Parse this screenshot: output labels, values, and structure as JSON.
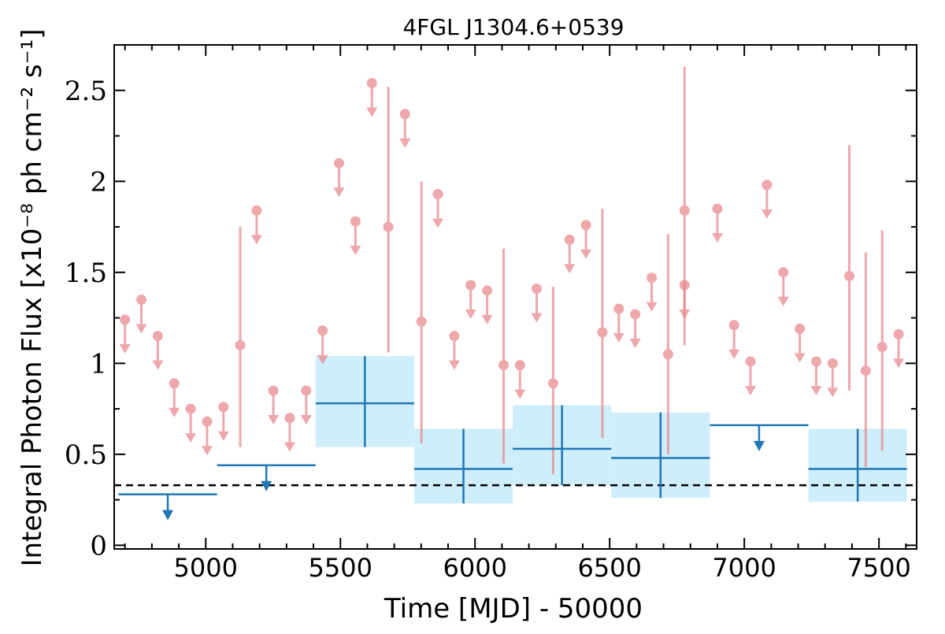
{
  "chart_data": {
    "type": "scatter",
    "title": "4FGL J1304.6+0539",
    "xlabel": "Time [MJD] - 50000",
    "ylabel": "Integral Photon Flux [x10⁻⁸ ph cm⁻² s⁻¹]",
    "xlim": [
      4660,
      7640
    ],
    "ylim": [
      -0.02,
      2.75
    ],
    "x_ticks": [
      5000,
      5500,
      6000,
      6500,
      7000,
      7500
    ],
    "y_ticks": [
      0,
      0.5,
      1,
      1.5,
      2,
      2.5
    ],
    "y_tick_labels": [
      "0",
      "0.5",
      "1",
      "1.5",
      "2",
      "2.5"
    ],
    "grid": false,
    "reference_line": {
      "y": 0.33,
      "style": "dashed",
      "color": "#000000"
    },
    "series": [
      {
        "kind": "monthly_upper_limits",
        "color": "#e8868a",
        "points": [
          {
            "x": 4700,
            "y": 1.24
          },
          {
            "x": 4761,
            "y": 1.35
          },
          {
            "x": 4822,
            "y": 1.15
          },
          {
            "x": 4883,
            "y": 0.89
          },
          {
            "x": 4944,
            "y": 0.75
          },
          {
            "x": 5005,
            "y": 0.68
          },
          {
            "x": 5066,
            "y": 0.76
          },
          {
            "x": 5189,
            "y": 1.84
          },
          {
            "x": 5251,
            "y": 0.85
          },
          {
            "x": 5312,
            "y": 0.7
          },
          {
            "x": 5373,
            "y": 0.85
          },
          {
            "x": 5434,
            "y": 1.18
          },
          {
            "x": 5495,
            "y": 2.1
          },
          {
            "x": 5556,
            "y": 1.78
          },
          {
            "x": 5617,
            "y": 2.54
          },
          {
            "x": 5740,
            "y": 2.37
          },
          {
            "x": 5862,
            "y": 1.93
          },
          {
            "x": 5923,
            "y": 1.15
          },
          {
            "x": 5984,
            "y": 1.43
          },
          {
            "x": 6045,
            "y": 1.4
          },
          {
            "x": 6167,
            "y": 0.99
          },
          {
            "x": 6229,
            "y": 1.41
          },
          {
            "x": 6351,
            "y": 1.68
          },
          {
            "x": 6412,
            "y": 1.76
          },
          {
            "x": 6534,
            "y": 1.3
          },
          {
            "x": 6595,
            "y": 1.27
          },
          {
            "x": 6656,
            "y": 1.47
          },
          {
            "x": 6778,
            "y": 1.43
          },
          {
            "x": 6900,
            "y": 1.85
          },
          {
            "x": 6962,
            "y": 1.21
          },
          {
            "x": 7023,
            "y": 1.01
          },
          {
            "x": 7084,
            "y": 1.98
          },
          {
            "x": 7145,
            "y": 1.5
          },
          {
            "x": 7206,
            "y": 1.19
          },
          {
            "x": 7267,
            "y": 1.01
          },
          {
            "x": 7328,
            "y": 1.0
          },
          {
            "x": 7573,
            "y": 1.16
          }
        ]
      },
      {
        "kind": "monthly_detections",
        "color": "#e8868a",
        "points": [
          {
            "x": 5128,
            "y": 1.1,
            "ylow": 0.54,
            "yhigh": 1.75
          },
          {
            "x": 5678,
            "y": 1.75,
            "ylow": 1.06,
            "yhigh": 2.52
          },
          {
            "x": 5801,
            "y": 1.23,
            "ylow": 0.56,
            "yhigh": 2.0
          },
          {
            "x": 6106,
            "y": 0.99,
            "ylow": 0.45,
            "yhigh": 1.63
          },
          {
            "x": 6290,
            "y": 0.89,
            "ylow": 0.39,
            "yhigh": 1.42
          },
          {
            "x": 6473,
            "y": 1.17,
            "ylow": 0.59,
            "yhigh": 1.85
          },
          {
            "x": 6717,
            "y": 1.05,
            "ylow": 0.5,
            "yhigh": 1.71
          },
          {
            "x": 6778,
            "y": 1.84,
            "ylow": 1.1,
            "yhigh": 2.63
          },
          {
            "x": 7390,
            "y": 1.48,
            "ylow": 0.85,
            "yhigh": 2.2
          },
          {
            "x": 7451,
            "y": 0.96,
            "ylow": 0.43,
            "yhigh": 1.61
          },
          {
            "x": 7512,
            "y": 1.09,
            "ylow": 0.52,
            "yhigh": 1.73
          }
        ]
      },
      {
        "kind": "yearly_detections",
        "color": "#1f77b4",
        "band_color": "#cfeefc",
        "points": [
          {
            "x": 5591,
            "x_lo": 5408,
            "x_hi": 5774,
            "y": 0.78,
            "ylow": 0.54,
            "yhigh": 1.04
          },
          {
            "x": 5957,
            "x_lo": 5774,
            "x_hi": 6140,
            "y": 0.42,
            "ylow": 0.23,
            "yhigh": 0.64
          },
          {
            "x": 6323,
            "x_lo": 6140,
            "x_hi": 6506,
            "y": 0.53,
            "ylow": 0.33,
            "yhigh": 0.77
          },
          {
            "x": 6689,
            "x_lo": 6506,
            "x_hi": 6872,
            "y": 0.48,
            "ylow": 0.26,
            "yhigh": 0.73
          },
          {
            "x": 7421,
            "x_lo": 7238,
            "x_hi": 7604,
            "y": 0.42,
            "ylow": 0.24,
            "yhigh": 0.64
          }
        ]
      },
      {
        "kind": "yearly_upper_limits",
        "color": "#1f77b4",
        "points": [
          {
            "x": 4859,
            "x_lo": 4676,
            "x_hi": 5042,
            "y": 0.28
          },
          {
            "x": 5225,
            "x_lo": 5042,
            "x_hi": 5408,
            "y": 0.44
          },
          {
            "x": 7055,
            "x_lo": 6872,
            "x_hi": 7238,
            "y": 0.66
          }
        ]
      }
    ]
  }
}
